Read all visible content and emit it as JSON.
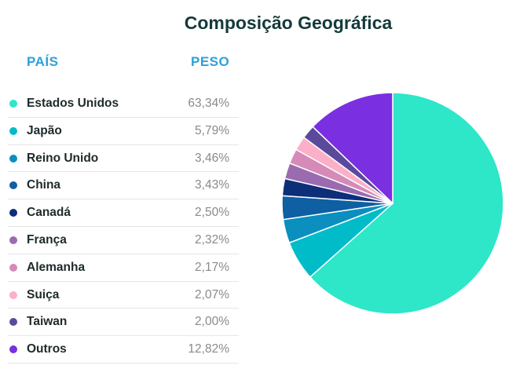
{
  "chart_data": {
    "type": "pie",
    "title": "Composição Geográfica",
    "columns": {
      "country": "PAÍS",
      "weight": "PESO"
    },
    "slices": [
      {
        "label": "Estados Unidos",
        "value": 63.34,
        "display": "63,34%",
        "color": "#2ee6c8"
      },
      {
        "label": "Japão",
        "value": 5.79,
        "display": "5,79%",
        "color": "#00bcc8"
      },
      {
        "label": "Reino Unido",
        "value": 3.46,
        "display": "3,46%",
        "color": "#0a8fbf"
      },
      {
        "label": "China",
        "value": 3.43,
        "display": "3,43%",
        "color": "#0f5fa3"
      },
      {
        "label": "Canadá",
        "value": 2.5,
        "display": "2,50%",
        "color": "#0d2f7a"
      },
      {
        "label": "França",
        "value": 2.32,
        "display": "2,32%",
        "color": "#9b6bb0"
      },
      {
        "label": "Alemanha",
        "value": 2.17,
        "display": "2,17%",
        "color": "#d58ab8"
      },
      {
        "label": "Suiça",
        "value": 2.07,
        "display": "2,07%",
        "color": "#fbb0c8"
      },
      {
        "label": "Taiwan",
        "value": 2.0,
        "display": "2,00%",
        "color": "#5b4a9c"
      },
      {
        "label": "Outros",
        "value": 12.82,
        "display": "12,82%",
        "color": "#7a2fe0"
      }
    ]
  }
}
